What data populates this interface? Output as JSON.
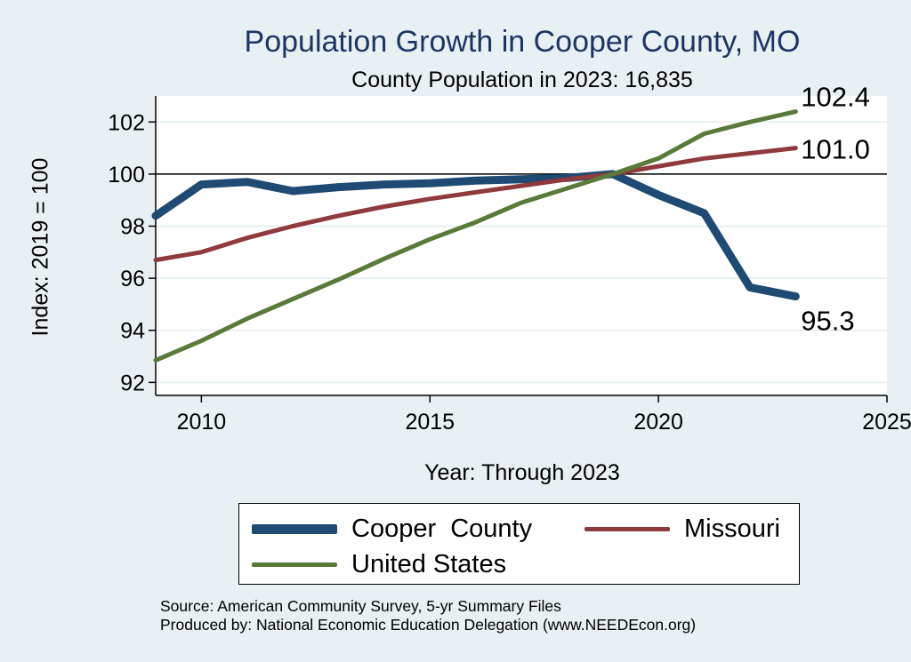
{
  "title": "Population Growth in Cooper County, MO",
  "subtitle": "County Population in 2023: 16,835",
  "source_lines": [
    "Source: American Community Survey, 5-yr Summary Files",
    "Produced by: National Economic Education Delegation (www.NEEDEcon.org)"
  ],
  "chart_data": {
    "type": "line",
    "xlabel": "Year: Through 2023",
    "ylabel": "Index: 2019 = 100",
    "xlim": [
      2009,
      2025
    ],
    "ylim": [
      91.5,
      103
    ],
    "xticks": [
      2010,
      2015,
      2020,
      2025
    ],
    "yticks": [
      92,
      94,
      96,
      98,
      100,
      102
    ],
    "reference_line": 100,
    "grid": true,
    "legend_position": "bottom",
    "x": [
      2009,
      2010,
      2011,
      2012,
      2013,
      2014,
      2015,
      2016,
      2017,
      2018,
      2019,
      2020,
      2021,
      2022,
      2023
    ],
    "series": [
      {
        "name": "Cooper  County",
        "color": "#1f4a73",
        "width": 9,
        "values": [
          98.4,
          99.6,
          99.7,
          99.35,
          99.5,
          99.6,
          99.65,
          99.75,
          99.8,
          99.85,
          100.0,
          99.2,
          98.5,
          95.65,
          95.3
        ],
        "end_label": "95.3"
      },
      {
        "name": "Missouri",
        "color": "#8f3a3d",
        "width": 5,
        "values": [
          96.7,
          97.0,
          97.55,
          98.0,
          98.4,
          98.75,
          99.05,
          99.3,
          99.55,
          99.8,
          100.0,
          100.3,
          100.6,
          100.8,
          101.0
        ],
        "end_label": "101.0"
      },
      {
        "name": "United States",
        "color": "#5a7a3a",
        "width": 5,
        "values": [
          92.85,
          93.6,
          94.45,
          95.2,
          95.95,
          96.75,
          97.5,
          98.15,
          98.9,
          99.45,
          100.0,
          100.6,
          101.55,
          102.0,
          102.4
        ],
        "end_label": "102.4"
      }
    ]
  }
}
